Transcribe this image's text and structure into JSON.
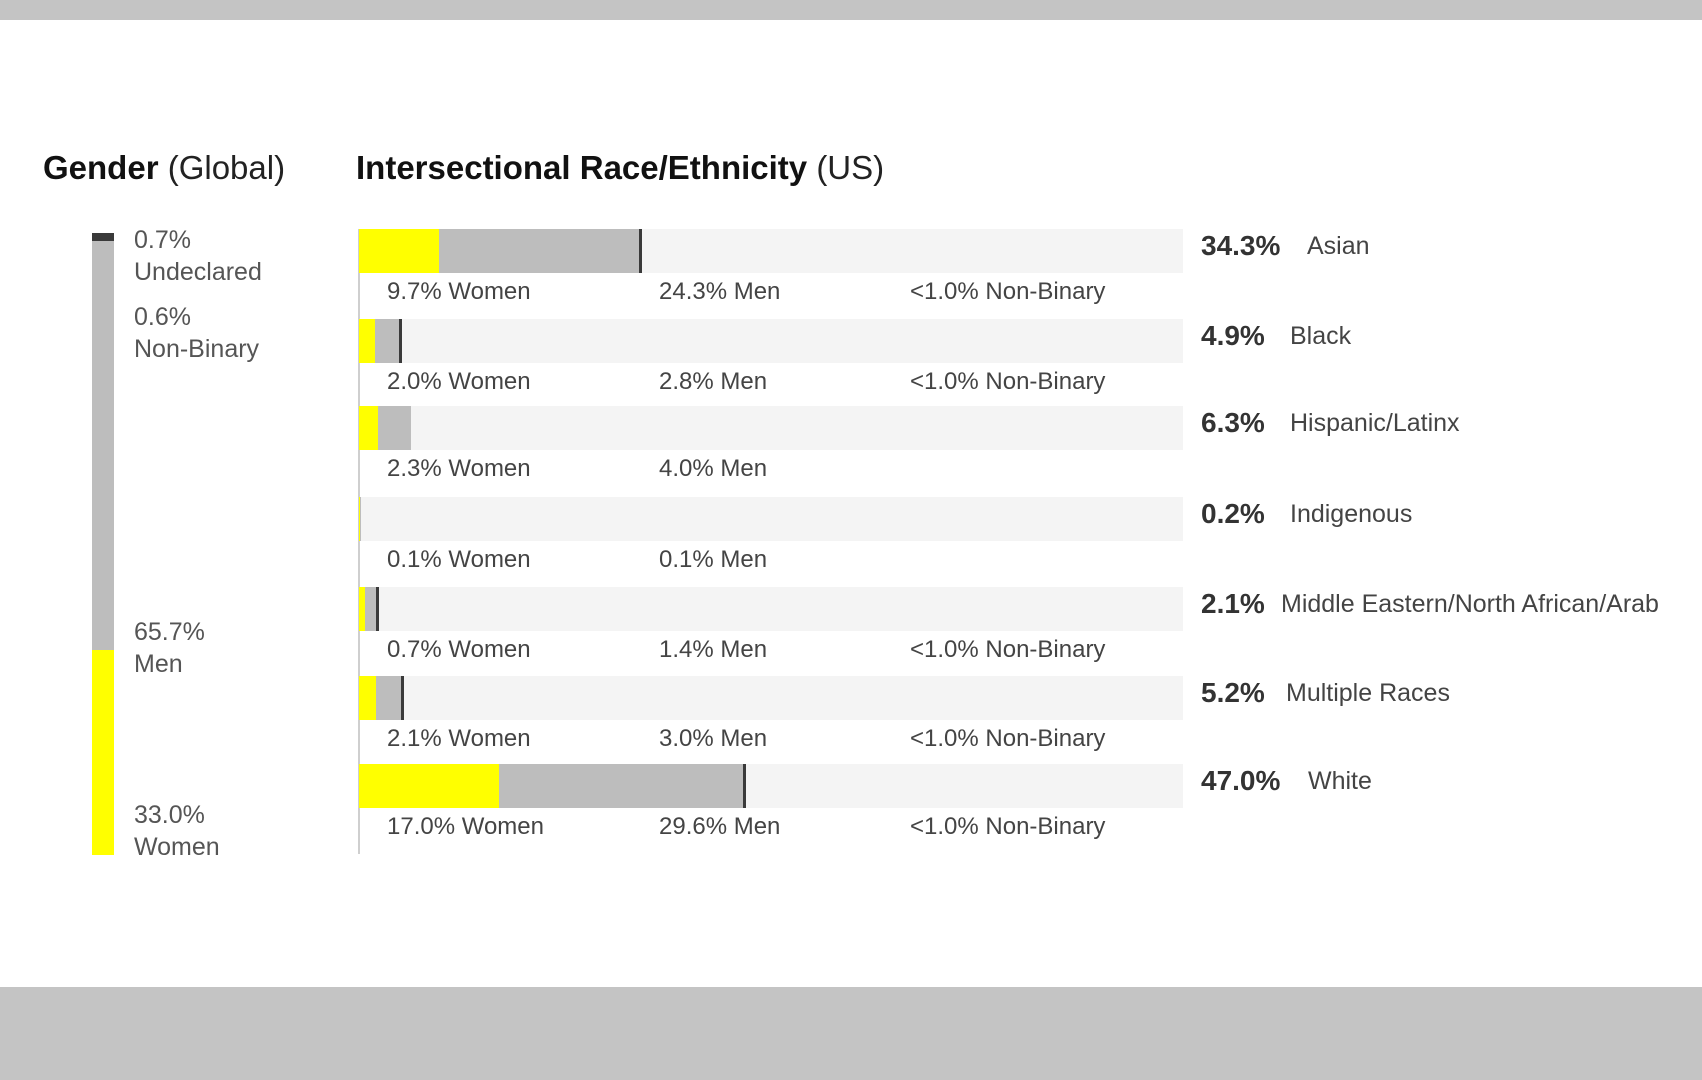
{
  "headings": {
    "gender_bold": "Gender",
    "gender_light": "(Global)",
    "race_bold": "Intersectional Race/Ethnicity",
    "race_light": "(US)"
  },
  "chart_data": [
    {
      "type": "bar",
      "title": "Gender (Global)",
      "orientation": "vertical-stacked",
      "segments": [
        {
          "name": "Undeclared",
          "value": 0.7,
          "label": "0.7%",
          "color": "#3a3a3a"
        },
        {
          "name": "Non-Binary",
          "value": 0.6,
          "label": "0.6%",
          "color": "#3a3a3a"
        },
        {
          "name": "Men",
          "value": 65.7,
          "label": "65.7%",
          "color": "#bdbdbd"
        },
        {
          "name": "Women",
          "value": 33.0,
          "label": "33.0%",
          "color": "#ffff00"
        }
      ]
    },
    {
      "type": "bar",
      "title": "Intersectional Race/Ethnicity (US)",
      "orientation": "horizontal-stacked",
      "xlim": [
        0,
        100
      ],
      "colors": {
        "women": "#ffff00",
        "men": "#bdbdbd",
        "non_binary": "#3a3a3a",
        "track": "#f4f4f4"
      },
      "rows": [
        {
          "name": "Asian",
          "total": "34.3%",
          "women": 9.7,
          "men": 24.3,
          "women_label": "9.7% Women",
          "men_label": "24.3% Men",
          "nb_label": "<1.0% Non-Binary"
        },
        {
          "name": "Black",
          "total": "4.9%",
          "women": 2.0,
          "men": 2.8,
          "women_label": "2.0% Women",
          "men_label": "2.8% Men",
          "nb_label": "<1.0% Non-Binary"
        },
        {
          "name": "Hispanic/Latinx",
          "total": "6.3%",
          "women": 2.3,
          "men": 4.0,
          "women_label": "2.3% Women",
          "men_label": "4.0% Men",
          "nb_label": ""
        },
        {
          "name": "Indigenous",
          "total": "0.2%",
          "women": 0.1,
          "men": 0.1,
          "women_label": "0.1% Women",
          "men_label": "0.1% Men",
          "nb_label": ""
        },
        {
          "name": "Middle Eastern/North African/Arab",
          "total": "2.1%",
          "women": 0.7,
          "men": 1.4,
          "women_label": "0.7% Women",
          "men_label": "1.4% Men",
          "nb_label": "<1.0% Non-Binary"
        },
        {
          "name": "Multiple Races",
          "total": "5.2%",
          "women": 2.1,
          "men": 3.0,
          "women_label": "2.1% Women",
          "men_label": "3.0% Men",
          "nb_label": "<1.0% Non-Binary"
        },
        {
          "name": "White",
          "total": "47.0%",
          "women": 17.0,
          "men": 29.6,
          "women_label": "17.0% Women",
          "men_label": "29.6% Men",
          "nb_label": "<1.0% Non-Binary"
        }
      ]
    }
  ]
}
